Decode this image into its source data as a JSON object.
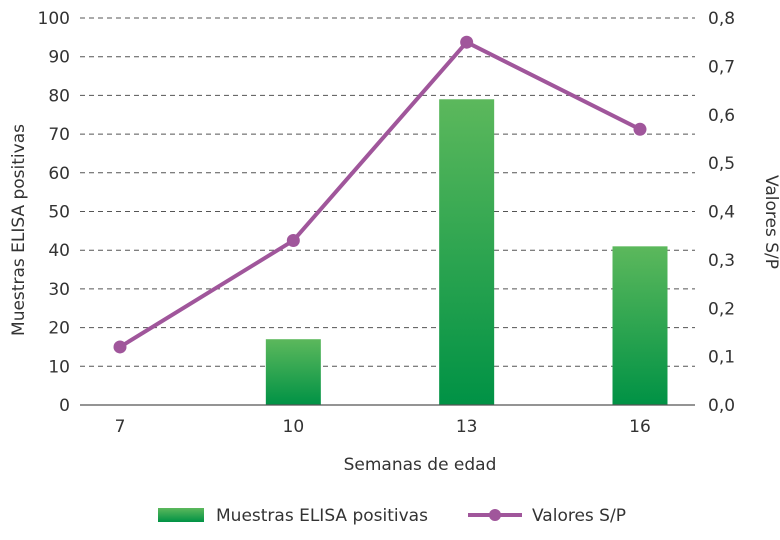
{
  "chart_data": {
    "type": "bar",
    "categories": [
      "7",
      "10",
      "13",
      "16"
    ],
    "xlabel": "Semanas de edad",
    "ylabel": "Muestras ELISA positivas",
    "y2label": "Valores S/P",
    "ylim": [
      0,
      100
    ],
    "y2lim": [
      0,
      0.8
    ],
    "yticks": [
      "0",
      "10",
      "20",
      "30",
      "40",
      "50",
      "60",
      "70",
      "80",
      "90",
      "100"
    ],
    "y2ticks": [
      "0,0",
      "0,1",
      "0,2",
      "0,3",
      "0,4",
      "0,5",
      "0,6",
      "0,7",
      "0,8"
    ],
    "grid": true,
    "legend_position": "bottom",
    "series": [
      {
        "name": "Muestras ELISA positivas",
        "type": "bar",
        "axis": "left",
        "values": [
          0,
          17,
          79,
          41
        ]
      },
      {
        "name": "Valores S/P",
        "type": "line",
        "axis": "right",
        "values": [
          0.12,
          0.34,
          0.75,
          0.57
        ]
      }
    ],
    "colors": {
      "bar_top": "#5cb85c",
      "bar_bottom": "#009245",
      "line": "#a0569b",
      "axis": "#555555",
      "text": "#333333"
    }
  }
}
